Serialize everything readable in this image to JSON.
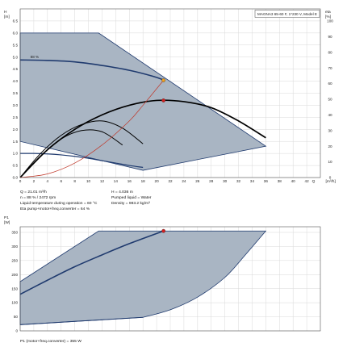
{
  "chart_data": [
    {
      "type": "line",
      "subtitle": "MAGNA3 65-60 F, 1*230 V, Model E",
      "ylabel": "H [m]",
      "ylabel_right": "eta [%]",
      "xlabel": "Q [m³/h]",
      "xlim": [
        0,
        44
      ],
      "ylim": [
        0,
        7
      ],
      "y2lim": [
        0,
        100
      ],
      "x_ticks": [
        0,
        2,
        4,
        6,
        8,
        10,
        12,
        14,
        16,
        18,
        20,
        22,
        24,
        26,
        28,
        30,
        32,
        34,
        36,
        38,
        40,
        42
      ],
      "y_ticks": [
        0.0,
        0.5,
        1.0,
        1.5,
        2.0,
        2.5,
        3.0,
        3.5,
        4.0,
        4.5,
        5.0,
        5.5,
        6.0,
        6.5
      ],
      "y2_ticks": [
        0,
        10,
        20,
        30,
        40,
        50,
        60,
        70,
        80,
        90,
        100
      ],
      "curve_label": "88 %",
      "grid": true,
      "envelope": {
        "x": [
          0,
          11.5,
          36,
          18,
          0
        ],
        "y": [
          6.0,
          6.0,
          1.3,
          0.3,
          1.5
        ]
      },
      "series": [
        {
          "kind": "pump_curve_88",
          "color": "#1f3a6e",
          "x": [
            0,
            4,
            8,
            12,
            16,
            19.5,
            21
          ],
          "y": [
            4.88,
            4.86,
            4.8,
            4.65,
            4.45,
            4.2,
            4.05
          ]
        },
        {
          "kind": "min_curve",
          "color": "#1f3a6e",
          "x": [
            0,
            2,
            4,
            6,
            8,
            10,
            12,
            14,
            16,
            18
          ],
          "y": [
            1.0,
            1.0,
            0.98,
            0.94,
            0.88,
            0.8,
            0.7,
            0.6,
            0.5,
            0.42
          ]
        },
        {
          "kind": "efficiency_max",
          "color": "#000000",
          "x": [
            0,
            4,
            8,
            12,
            16,
            20,
            24,
            28,
            32,
            36
          ],
          "y": [
            0.0,
            1.15,
            2.0,
            2.6,
            3.0,
            3.2,
            3.15,
            2.9,
            2.35,
            1.65
          ]
        },
        {
          "kind": "efficiency_low_1",
          "color": "#000000",
          "x": [
            0,
            3,
            6,
            9,
            12,
            15,
            18
          ],
          "y": [
            0.0,
            1.0,
            1.75,
            2.2,
            2.35,
            2.05,
            1.4
          ]
        },
        {
          "kind": "efficiency_low_2",
          "color": "#000000",
          "x": [
            0,
            3,
            6,
            9,
            12,
            15
          ],
          "y": [
            0.0,
            0.9,
            1.6,
            1.95,
            1.9,
            1.35
          ]
        },
        {
          "kind": "system_curve",
          "color": "#c0392b",
          "x": [
            0,
            4,
            8,
            12,
            16,
            18,
            21.01
          ],
          "y": [
            0.0,
            0.15,
            0.6,
            1.35,
            2.35,
            3.0,
            4.036
          ]
        }
      ],
      "points": [
        {
          "name": "duty_point",
          "x": 21.01,
          "y": 4.036,
          "color": "#f0a020"
        },
        {
          "name": "eta_point",
          "x": 21.01,
          "y": 3.2,
          "color": "#d42020"
        }
      ]
    },
    {
      "type": "line",
      "ylabel": "P1 [W]",
      "xlim": [
        0,
        44
      ],
      "ylim": [
        0,
        370
      ],
      "y_ticks": [
        0,
        50,
        100,
        150,
        200,
        250,
        300,
        350
      ],
      "grid": true,
      "envelope": {
        "x": [
          0,
          11.5,
          36,
          18,
          0
        ],
        "y": [
          175,
          355,
          355,
          48,
          22
        ]
      },
      "series": [
        {
          "kind": "power_curve",
          "color": "#1f3a6e",
          "x": [
            0,
            4,
            8,
            12,
            16,
            21.01
          ],
          "y": [
            130,
            180,
            228,
            270,
            310,
            355
          ]
        },
        {
          "kind": "power_min",
          "color": "#1f3a6e",
          "x": [
            0,
            18
          ],
          "y": [
            22,
            48
          ]
        }
      ],
      "points": [
        {
          "name": "power_point",
          "x": 21.01,
          "y": 355,
          "color": "#d42020"
        }
      ]
    }
  ],
  "info": {
    "q": "Q = 21.01 m³/h",
    "n": "n = 88 % / 2472 rpm",
    "liquid_temp": "Liquid temperature during operation = 60 °C",
    "eta": "Eta pump+motor+freq.converter = 64 %",
    "h": "H = 4.036 m",
    "pumped_liquid": "Pumped liquid = Water",
    "density": "Density = 983.2 kg/m³",
    "p1": "P1 (motor+freq.converter) = 355 W"
  },
  "colors": {
    "envelope_fill": "#a9b5c3",
    "envelope_stroke": "#1f3a6e",
    "grid": "#d9d9d9"
  }
}
